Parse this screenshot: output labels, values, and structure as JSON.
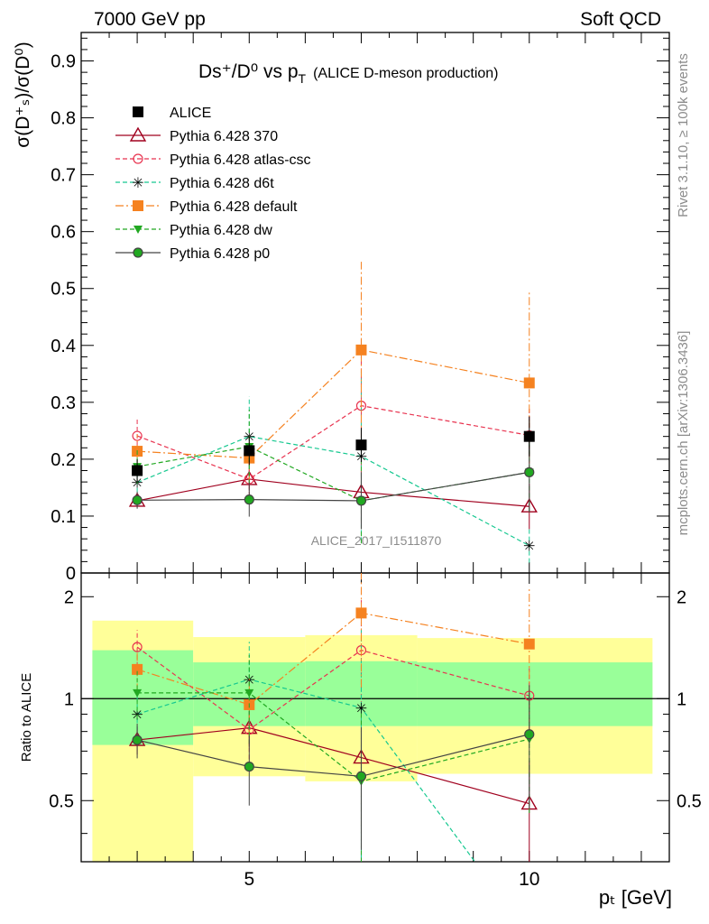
{
  "header": {
    "left": "7000 GeV pp",
    "right": "Soft QCD"
  },
  "side_labels": {
    "rivet": "Rivet 3.1.10, ≥ 100k events",
    "mcplots": "mcplots.cern.ch [arXiv:1306.3436]"
  },
  "title": {
    "main": "Ds⁺/D⁰ vs p",
    "sub": "T",
    "paren": "(ALICE D-meson production)"
  },
  "watermark": "ALICE_2017_I1511870",
  "ylabel_top": "σ(D⁺ₛ)/σ(D⁰)",
  "ylabel_bottom": "Ratio to ALICE",
  "xlabel": "pₜ [GeV]",
  "colors": {
    "data": "#000000",
    "band_inner": "#99ff99",
    "band_outer": "#ffff99"
  },
  "chart_data": [
    {
      "type": "line",
      "panel": "main",
      "ylim": [
        0,
        0.95
      ],
      "xlim": [
        2,
        12.5
      ],
      "yticks": [
        "0",
        "0.1",
        "0.2",
        "0.3",
        "0.4",
        "0.5",
        "0.6",
        "0.7",
        "0.8",
        "0.9"
      ],
      "xticks": [
        "5",
        "10"
      ],
      "data": {
        "name": "ALICE",
        "x": [
          3,
          5,
          7,
          10
        ],
        "y": [
          0.18,
          0.215,
          0.225,
          0.24
        ],
        "err": [
          0.02,
          0.025,
          0.03,
          0.035
        ],
        "color": "#000000"
      },
      "series": [
        {
          "name": "Pythia 6.428 370",
          "color": "#a0001e",
          "dash": "",
          "marker": "triangle-open",
          "x": [
            3,
            5,
            7,
            10
          ],
          "y": [
            0.127,
            0.165,
            0.142,
            0.117
          ],
          "err": [
            0.012,
            0.02,
            0.055,
            0.04
          ]
        },
        {
          "name": "Pythia 6.428 atlas-csc",
          "color": "#e8334f",
          "dash": "5,3",
          "marker": "circle-open",
          "x": [
            3,
            5,
            7,
            10
          ],
          "y": [
            0.241,
            0.165,
            0.294,
            0.242
          ],
          "err": [
            0.03,
            0.03,
            0.12,
            0.05
          ]
        },
        {
          "name": "Pythia 6.428 d6t",
          "color": "#16c890",
          "dash": "5,3",
          "marker": "star",
          "x": [
            3,
            5,
            7,
            10
          ],
          "y": [
            0.159,
            0.24,
            0.205,
            0.048
          ],
          "err": [
            0.03,
            0.07,
            0.15,
            0.03
          ]
        },
        {
          "name": "Pythia 6.428 default",
          "color": "#f58220",
          "dash": "9,3,2,3",
          "marker": "square",
          "x": [
            3,
            5,
            7,
            10
          ],
          "y": [
            0.214,
            0.202,
            0.392,
            0.334
          ],
          "err": [
            0.03,
            0.04,
            0.155,
            0.16
          ]
        },
        {
          "name": "Pythia 6.428 dw",
          "color": "#21a821",
          "dash": "5,3",
          "marker": "triangle-down",
          "x": [
            3,
            5,
            7,
            10
          ],
          "y": [
            0.187,
            0.222,
            0.127,
            0.177
          ],
          "err": [
            0.03,
            0.065,
            0.075,
            0.07
          ]
        },
        {
          "name": "Pythia 6.428 p0",
          "color": "#444444",
          "dash": "",
          "marker": "circle-green",
          "x": [
            3,
            5,
            7,
            10
          ],
          "y": [
            0.128,
            0.129,
            0.127,
            0.177
          ],
          "err": [
            0.015,
            0.03,
            0.05,
            0.07
          ]
        }
      ]
    },
    {
      "type": "line",
      "panel": "ratio",
      "ylabel": "Ratio to ALICE",
      "ylim": [
        0.33,
        2.35
      ],
      "xlim": [
        2,
        12.5
      ],
      "yticks": [
        "0.5",
        "1",
        "2"
      ],
      "bands": [
        {
          "x0": 2.2,
          "x1": 4,
          "inner": [
            0.73,
            1.39
          ],
          "outer": [
            0.33,
            1.7
          ]
        },
        {
          "x0": 4,
          "x1": 6,
          "inner": [
            0.83,
            1.28
          ],
          "outer": [
            0.59,
            1.52
          ]
        },
        {
          "x0": 6,
          "x1": 8,
          "inner": [
            0.83,
            1.29
          ],
          "outer": [
            0.57,
            1.54
          ]
        },
        {
          "x0": 8,
          "x1": 12.2,
          "inner": [
            0.83,
            1.28
          ],
          "outer": [
            0.6,
            1.51
          ]
        }
      ],
      "series": [
        {
          "name": "Pythia 6.428 370",
          "x": [
            3,
            5,
            7,
            10
          ],
          "y": [
            0.755,
            0.82,
            0.67,
            0.49
          ]
        },
        {
          "name": "Pythia 6.428 atlas-csc",
          "x": [
            3,
            5,
            7,
            10
          ],
          "y": [
            1.42,
            0.81,
            1.39,
            1.02
          ]
        },
        {
          "name": "Pythia 6.428 d6t",
          "x": [
            3,
            5,
            7,
            10
          ],
          "y": [
            0.9,
            1.14,
            0.94,
            0.2
          ]
        },
        {
          "name": "Pythia 6.428 default",
          "x": [
            3,
            5,
            7,
            10
          ],
          "y": [
            1.22,
            0.96,
            1.79,
            1.45
          ]
        },
        {
          "name": "Pythia 6.428 dw",
          "x": [
            3,
            5,
            7,
            10
          ],
          "y": [
            1.04,
            1.04,
            0.57,
            0.76
          ]
        },
        {
          "name": "Pythia 6.428 p0",
          "x": [
            3,
            5,
            7,
            10
          ],
          "y": [
            0.755,
            0.63,
            0.59,
            0.785
          ]
        }
      ]
    }
  ]
}
